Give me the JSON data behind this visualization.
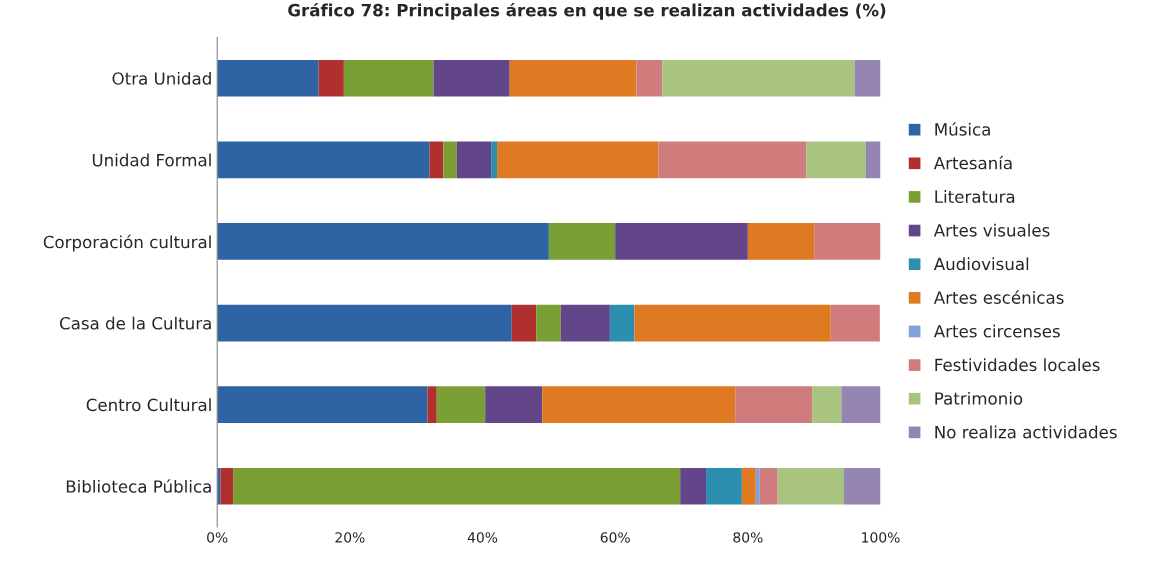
{
  "chart_data": {
    "type": "bar",
    "orientation": "horizontal",
    "stacked": true,
    "title": "Gráfico 78: Principales áreas en que se realizan actividades (%)",
    "categories": [
      "Otra Unidad",
      "Unidad Formal",
      "Corporación cultural",
      "Casa de la Cultura",
      "Centro Cultural",
      "Biblioteca Pública"
    ],
    "series": [
      {
        "name": "Música",
        "color": "#2e64a4",
        "values": [
          15.3,
          32.0,
          50,
          44.4,
          31.7,
          0.5
        ]
      },
      {
        "name": "Artesanía",
        "color": "#b0302f",
        "values": [
          3.8,
          2.1,
          0,
          3.7,
          1.4,
          1.9
        ]
      },
      {
        "name": "Literatura",
        "color": "#7a9f35",
        "values": [
          13.5,
          2.0,
          10,
          3.7,
          7.3,
          67.4
        ]
      },
      {
        "name": "Artes visuales",
        "color": "#63468a",
        "values": [
          11.5,
          5.2,
          20,
          7.4,
          8.6,
          3.9
        ]
      },
      {
        "name": "Audiovisual",
        "color": "#2d8fb0",
        "values": [
          0,
          0.9,
          0,
          3.7,
          0,
          5.4
        ]
      },
      {
        "name": "Artes escénicas",
        "color": "#e07a22",
        "values": [
          19.1,
          24.3,
          10,
          29.6,
          29.1,
          2.1
        ]
      },
      {
        "name": "Artes circenses",
        "color": "#7fa3d6",
        "values": [
          0,
          0,
          0,
          0,
          0,
          0.6
        ]
      },
      {
        "name": "Festividades locales",
        "color": "#d07c7c",
        "values": [
          3.9,
          22.3,
          10,
          7.4,
          11.6,
          2.7
        ]
      },
      {
        "name": "Patrimonio",
        "color": "#a8c47e",
        "values": [
          29.0,
          9.0,
          0,
          0,
          4.4,
          10.0
        ]
      },
      {
        "name": "No realiza actividades",
        "color": "#9485b3",
        "values": [
          3.9,
          2.2,
          0,
          0,
          5.9,
          5.5
        ]
      }
    ],
    "xlim": [
      0,
      100
    ],
    "xticks": [
      {
        "value": 0,
        "label": "0%"
      },
      {
        "value": 20,
        "label": "20%"
      },
      {
        "value": 40,
        "label": "40%"
      },
      {
        "value": 60,
        "label": "60%"
      },
      {
        "value": 80,
        "label": "80%"
      },
      {
        "value": 100,
        "label": "100%"
      }
    ],
    "grid": false,
    "legend": "right"
  }
}
